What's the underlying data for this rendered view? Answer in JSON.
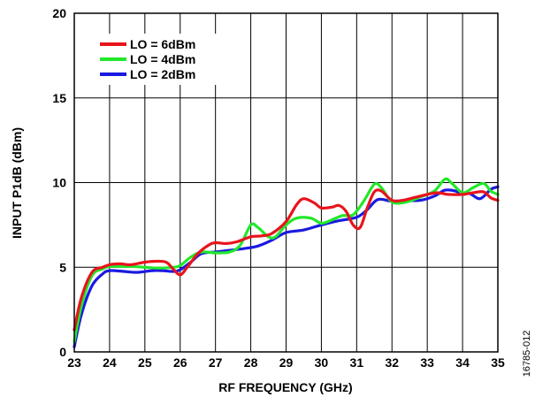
{
  "chart_data": {
    "type": "line",
    "xlabel": "RF FREQUENCY (GHz)",
    "ylabel": "INPUT P1dB (dBm)",
    "xlim": [
      23,
      35
    ],
    "ylim": [
      0,
      20
    ],
    "x_ticks": [
      "23",
      "24",
      "25",
      "26",
      "27",
      "28",
      "29",
      "30",
      "31",
      "32",
      "33",
      "34",
      "35"
    ],
    "y_ticks": [
      "0",
      "5",
      "10",
      "15",
      "20"
    ],
    "grid": true,
    "legend_position": "top-left",
    "figure_id": "16785-012",
    "series": [
      {
        "name": "LO = 6dBm",
        "color": "#e8141c",
        "points": [
          [
            23.0,
            1.3
          ],
          [
            23.2,
            3.2
          ],
          [
            23.5,
            4.7
          ],
          [
            23.8,
            5.0
          ],
          [
            24.0,
            5.15
          ],
          [
            24.3,
            5.2
          ],
          [
            24.6,
            5.15
          ],
          [
            25.0,
            5.3
          ],
          [
            25.3,
            5.35
          ],
          [
            25.6,
            5.3
          ],
          [
            25.8,
            4.9
          ],
          [
            26.0,
            4.55
          ],
          [
            26.2,
            5.0
          ],
          [
            26.5,
            5.8
          ],
          [
            26.8,
            6.3
          ],
          [
            27.0,
            6.45
          ],
          [
            27.3,
            6.4
          ],
          [
            27.6,
            6.5
          ],
          [
            28.0,
            6.8
          ],
          [
            28.3,
            6.85
          ],
          [
            28.6,
            7.0
          ],
          [
            29.0,
            7.7
          ],
          [
            29.3,
            8.7
          ],
          [
            29.5,
            9.05
          ],
          [
            29.8,
            8.8
          ],
          [
            30.0,
            8.5
          ],
          [
            30.3,
            8.55
          ],
          [
            30.5,
            8.65
          ],
          [
            30.7,
            8.3
          ],
          [
            30.9,
            7.5
          ],
          [
            31.1,
            7.35
          ],
          [
            31.3,
            8.5
          ],
          [
            31.5,
            9.45
          ],
          [
            31.7,
            9.5
          ],
          [
            32.0,
            8.95
          ],
          [
            32.3,
            8.95
          ],
          [
            32.6,
            9.1
          ],
          [
            33.0,
            9.3
          ],
          [
            33.3,
            9.4
          ],
          [
            33.6,
            9.3
          ],
          [
            34.0,
            9.3
          ],
          [
            34.3,
            9.4
          ],
          [
            34.6,
            9.45
          ],
          [
            34.8,
            9.1
          ],
          [
            35.0,
            8.95
          ]
        ]
      },
      {
        "name": "LO = 4dBm",
        "color": "#22e82a",
        "points": [
          [
            23.0,
            0.6
          ],
          [
            23.2,
            2.7
          ],
          [
            23.5,
            4.5
          ],
          [
            23.8,
            4.9
          ],
          [
            24.0,
            5.05
          ],
          [
            24.3,
            5.05
          ],
          [
            24.6,
            5.05
          ],
          [
            25.0,
            5.0
          ],
          [
            25.4,
            4.95
          ],
          [
            25.8,
            5.0
          ],
          [
            26.0,
            5.1
          ],
          [
            26.3,
            5.6
          ],
          [
            26.6,
            5.9
          ],
          [
            27.0,
            5.85
          ],
          [
            27.4,
            5.9
          ],
          [
            27.7,
            6.3
          ],
          [
            28.0,
            7.5
          ],
          [
            28.2,
            7.35
          ],
          [
            28.5,
            6.8
          ],
          [
            28.7,
            6.8
          ],
          [
            29.0,
            7.5
          ],
          [
            29.3,
            7.9
          ],
          [
            29.7,
            7.9
          ],
          [
            30.0,
            7.6
          ],
          [
            30.3,
            7.8
          ],
          [
            30.6,
            8.05
          ],
          [
            30.9,
            8.1
          ],
          [
            31.2,
            8.9
          ],
          [
            31.5,
            9.9
          ],
          [
            31.7,
            9.7
          ],
          [
            32.0,
            8.85
          ],
          [
            32.4,
            8.85
          ],
          [
            32.8,
            9.15
          ],
          [
            33.2,
            9.5
          ],
          [
            33.5,
            10.2
          ],
          [
            33.7,
            9.95
          ],
          [
            34.0,
            9.4
          ],
          [
            34.3,
            9.7
          ],
          [
            34.6,
            9.95
          ],
          [
            34.8,
            9.5
          ],
          [
            35.0,
            9.3
          ]
        ]
      },
      {
        "name": "LO = 2dBm",
        "color": "#1a1ae0",
        "points": [
          [
            23.0,
            0.3
          ],
          [
            23.2,
            2.2
          ],
          [
            23.5,
            3.9
          ],
          [
            23.8,
            4.6
          ],
          [
            24.0,
            4.8
          ],
          [
            24.4,
            4.75
          ],
          [
            24.8,
            4.7
          ],
          [
            25.2,
            4.8
          ],
          [
            25.5,
            4.8
          ],
          [
            25.8,
            4.75
          ],
          [
            26.0,
            4.85
          ],
          [
            26.3,
            5.3
          ],
          [
            26.6,
            5.8
          ],
          [
            27.0,
            5.9
          ],
          [
            27.4,
            6.0
          ],
          [
            27.8,
            6.1
          ],
          [
            28.2,
            6.25
          ],
          [
            28.6,
            6.6
          ],
          [
            29.0,
            7.05
          ],
          [
            29.5,
            7.2
          ],
          [
            30.0,
            7.5
          ],
          [
            30.5,
            7.75
          ],
          [
            31.0,
            7.95
          ],
          [
            31.3,
            8.4
          ],
          [
            31.6,
            9.0
          ],
          [
            32.0,
            8.9
          ],
          [
            32.4,
            8.95
          ],
          [
            32.8,
            8.95
          ],
          [
            33.2,
            9.2
          ],
          [
            33.5,
            9.55
          ],
          [
            33.8,
            9.5
          ],
          [
            34.0,
            9.3
          ],
          [
            34.2,
            9.35
          ],
          [
            34.5,
            9.05
          ],
          [
            34.8,
            9.6
          ],
          [
            35.0,
            9.75
          ]
        ]
      }
    ]
  }
}
